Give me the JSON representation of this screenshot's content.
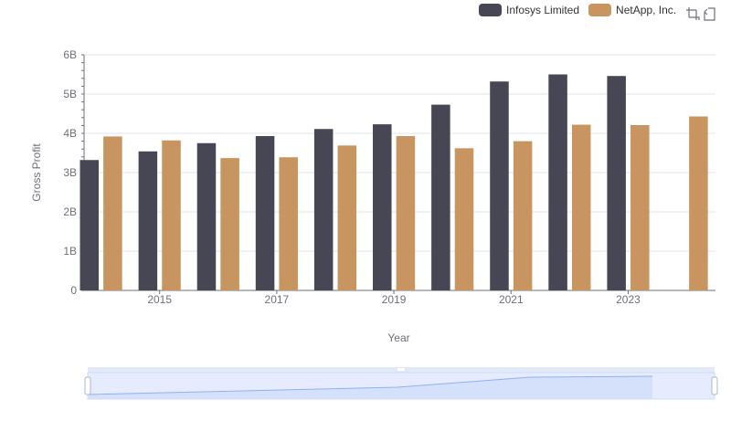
{
  "colors": {
    "infosys": "#474654",
    "netapp": "#c89460",
    "grid": "#e0e6f1",
    "axis": "#6e7079",
    "slider_fill": "#d5e0fb",
    "slider_line": "#8fb0f7"
  },
  "toolbox": {
    "icons": [
      "zoom-icon",
      "zoom-reset-icon"
    ]
  },
  "chart_data": {
    "type": "bar",
    "xlabel": "Year",
    "ylabel": "Gross Profit",
    "ylim": [
      0,
      6000000000
    ],
    "y_ticks": [
      "0",
      "1B",
      "2B",
      "3B",
      "4B",
      "5B",
      "6B"
    ],
    "x_tick_labels": [
      "2015",
      "2017",
      "2019",
      "2021",
      "2023"
    ],
    "categories": [
      "2014",
      "2015",
      "2016",
      "2017",
      "2018",
      "2019",
      "2020",
      "2021",
      "2022",
      "2023",
      "2024"
    ],
    "legend_position": "top-right",
    "grid": true,
    "series": [
      {
        "name": "Infosys Limited",
        "values": [
          3320000000,
          3540000000,
          3750000000,
          3930000000,
          4110000000,
          4230000000,
          4730000000,
          5320000000,
          5500000000,
          5460000000,
          null
        ]
      },
      {
        "name": "NetApp, Inc.",
        "values": [
          3920000000,
          3820000000,
          3370000000,
          3390000000,
          3690000000,
          3930000000,
          3620000000,
          3800000000,
          4220000000,
          4210000000,
          4430000000
        ]
      }
    ]
  }
}
